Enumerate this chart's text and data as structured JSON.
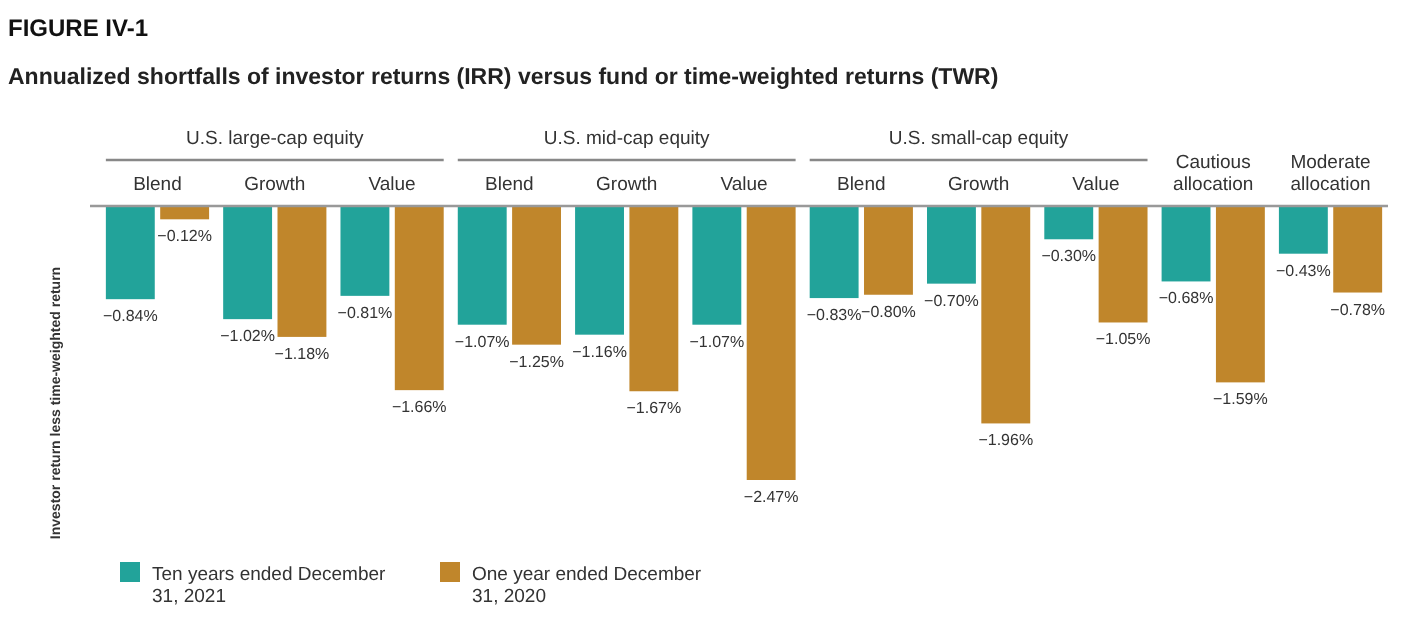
{
  "chart_data": {
    "type": "bar",
    "title": "FIGURE IV-1",
    "subtitle": "Annualized shortfalls of investor returns (IRR) versus fund or time-weighted returns (TWR)",
    "ylabel": "Investor return less time-weighted return",
    "categories": [
      "Blend",
      "Growth",
      "Value",
      "Blend",
      "Growth",
      "Value",
      "Blend",
      "Growth",
      "Value",
      "Cautious allocation",
      "Moderate allocation"
    ],
    "annotations": [
      "U.S. large-cap equity",
      "U.S. mid-cap equity",
      "U.S. small-cap equity"
    ],
    "series": [
      {
        "name": "Ten years ended December 31, 2021",
        "color": "#22a39a",
        "values": [
          -0.84,
          -1.02,
          -0.81,
          -1.07,
          -1.16,
          -1.07,
          -0.83,
          -0.7,
          -0.3,
          -0.68,
          -0.43
        ],
        "value_labels": [
          "−0.84%",
          "−1.02%",
          "−0.81%",
          "−1.07%",
          "−1.16%",
          "−1.07%",
          "−0.83%",
          "−0.70%",
          "−0.30%",
          "−0.68%",
          "−0.43%"
        ]
      },
      {
        "name": "One year ended December 31, 2020",
        "color": "#c0862b",
        "values": [
          -0.12,
          -1.18,
          -1.66,
          -1.25,
          -1.67,
          -2.47,
          -0.8,
          -1.96,
          -1.05,
          -1.59,
          -0.78
        ],
        "value_labels": [
          "−0.12%",
          "−1.18%",
          "−1.66%",
          "−1.25%",
          "−1.67%",
          "−2.47%",
          "−0.80%",
          "−1.96%",
          "−1.05%",
          "−1.59%",
          "−0.78%"
        ]
      }
    ],
    "legend": "bottom left"
  }
}
